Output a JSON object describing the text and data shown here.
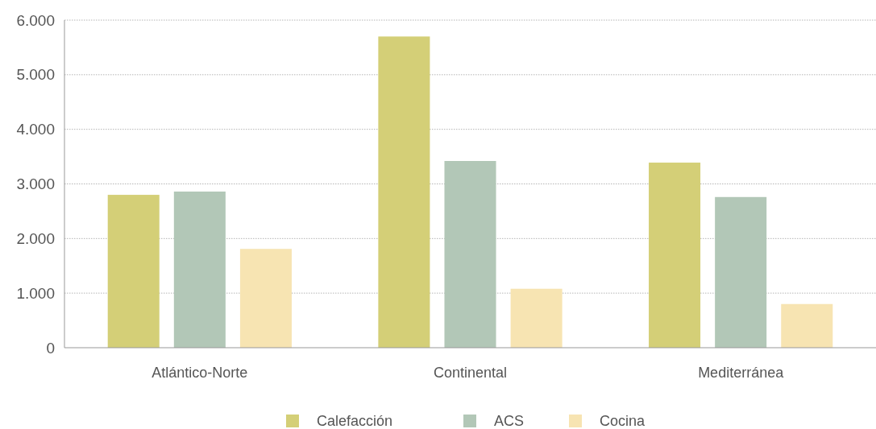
{
  "chart_data": {
    "type": "bar",
    "categories": [
      "Atlántico-Norte",
      "Continental",
      "Mediterránea"
    ],
    "series": [
      {
        "name": "Calefacción",
        "color": "#d4cf77",
        "values": [
          2800,
          5700,
          3390
        ]
      },
      {
        "name": "ACS",
        "color": "#b2c7b7",
        "values": [
          2860,
          3420,
          2760
        ]
      },
      {
        "name": "Cocina",
        "color": "#f7e4b2",
        "values": [
          1810,
          1080,
          800
        ]
      }
    ],
    "ylim": [
      0,
      6000
    ],
    "yticks": [
      {
        "value": 0,
        "label": "0"
      },
      {
        "value": 1000,
        "label": "1.000"
      },
      {
        "value": 2000,
        "label": "2.000"
      },
      {
        "value": 3000,
        "label": "3.000"
      },
      {
        "value": 4000,
        "label": "4.000"
      },
      {
        "value": 5000,
        "label": "5.000"
      },
      {
        "value": 6000,
        "label": "6.000"
      }
    ],
    "grid": "y",
    "legend": "bottom"
  }
}
